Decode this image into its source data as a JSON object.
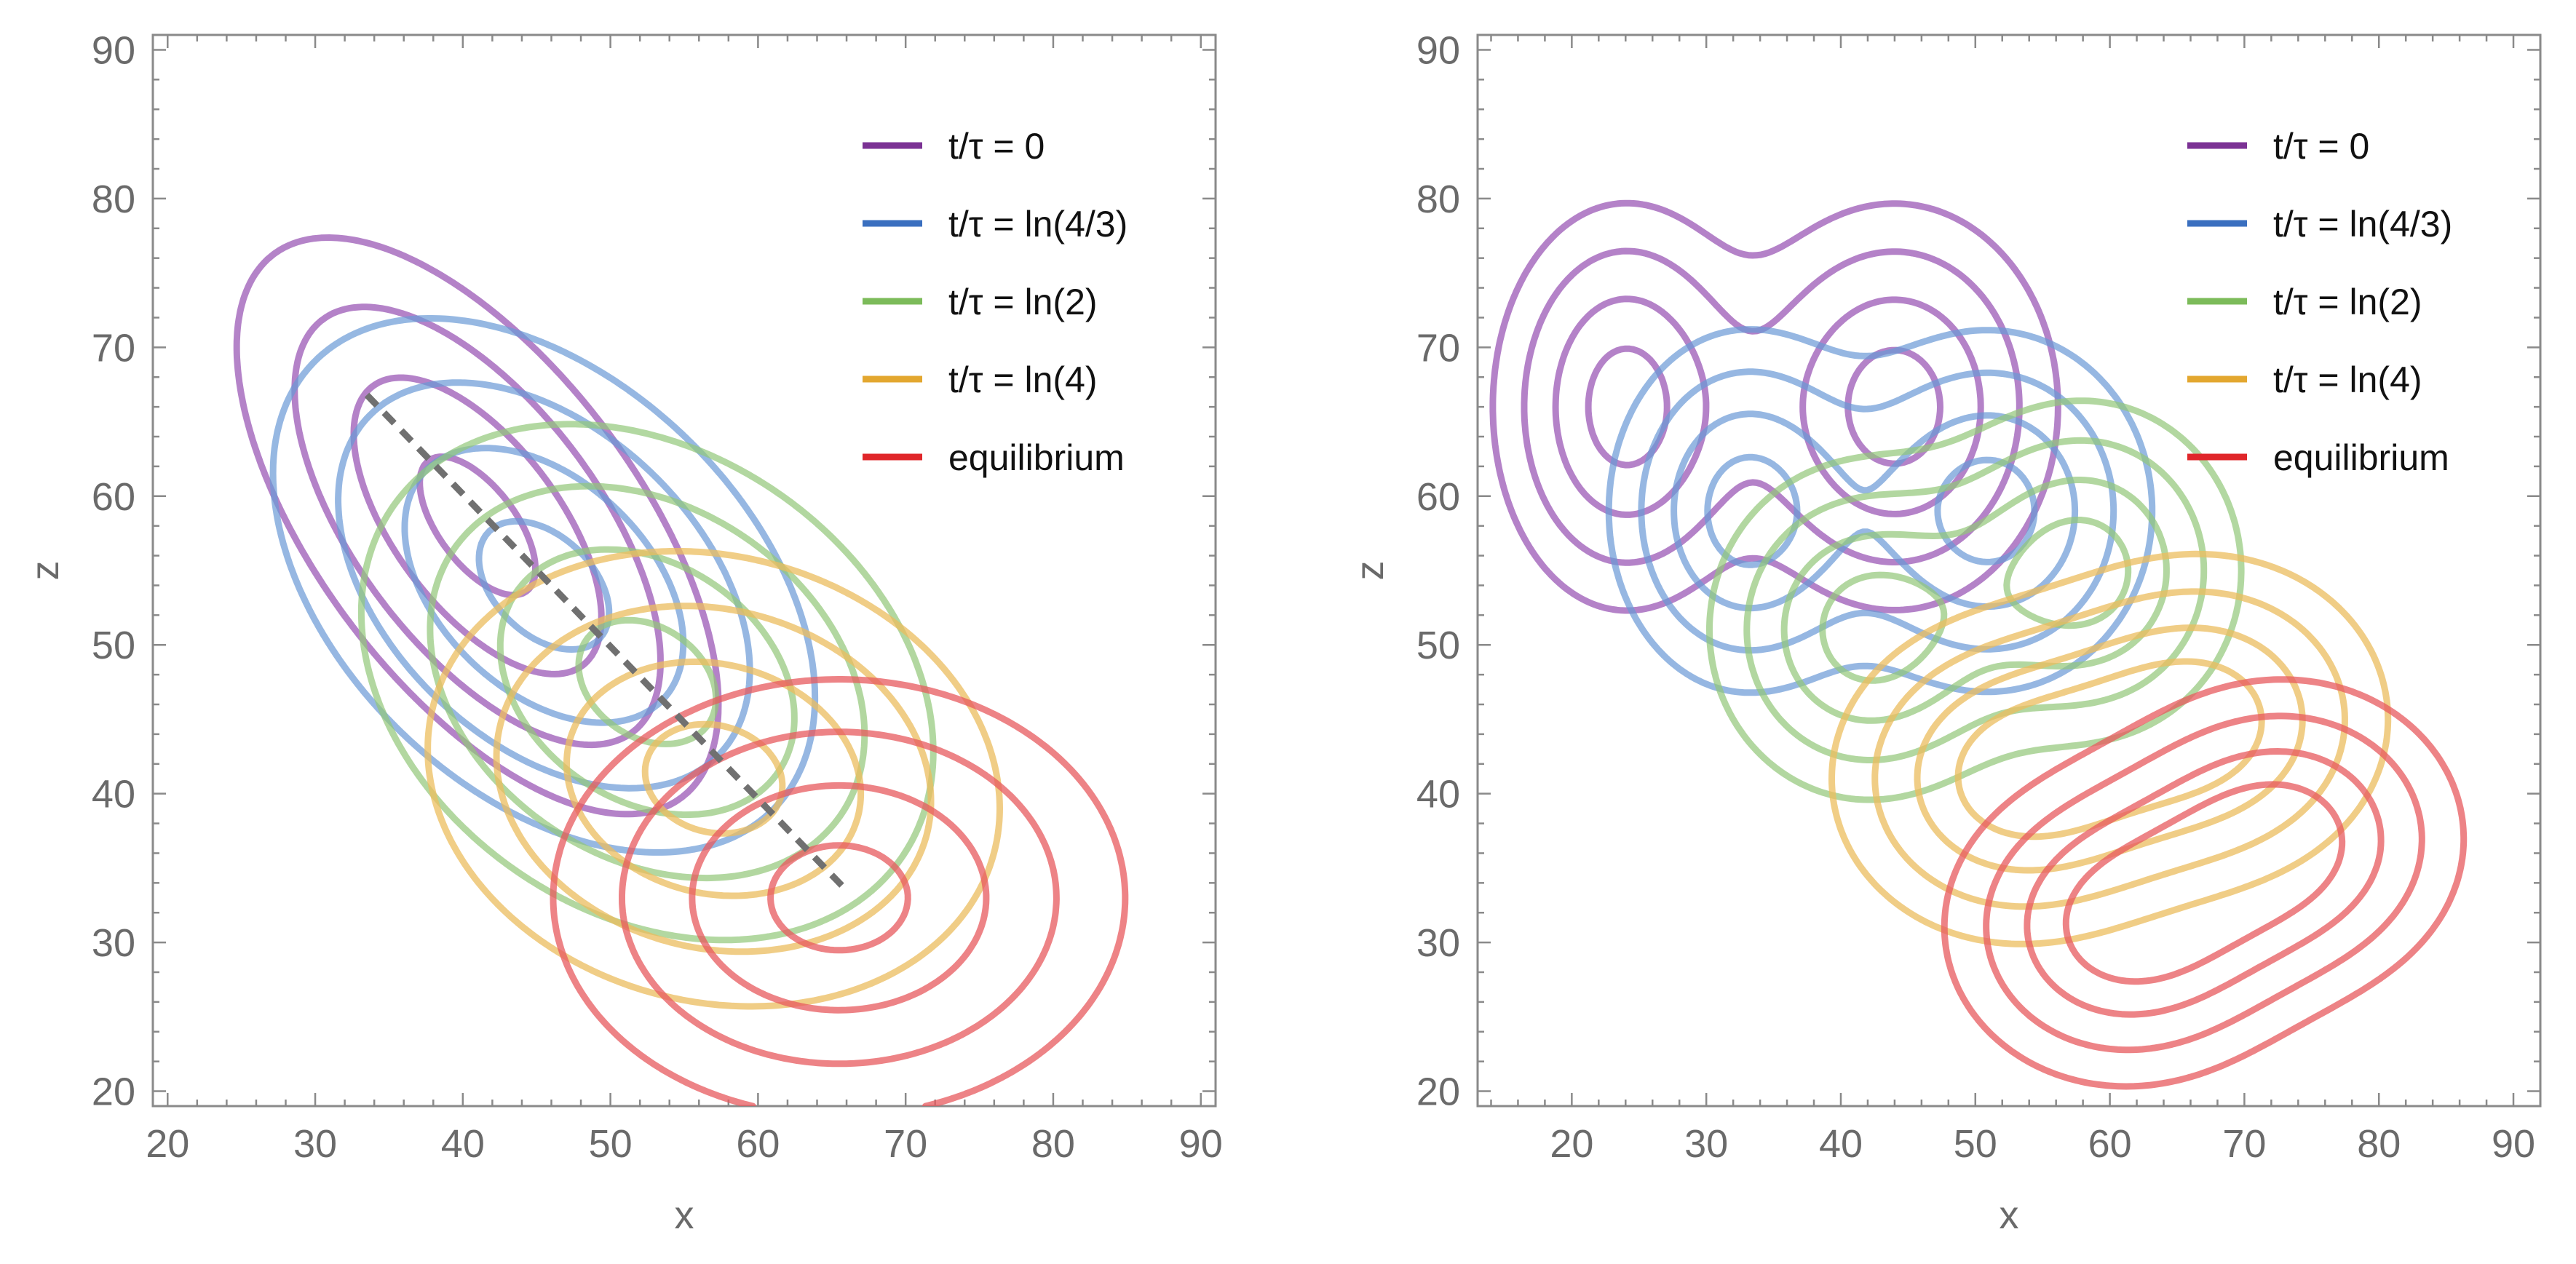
{
  "chart_data": [
    {
      "type": "contour",
      "panel": "left",
      "title": "",
      "xlabel": "x",
      "ylabel": "z",
      "xlim": [
        19,
        91
      ],
      "ylim": [
        19,
        91
      ],
      "xticks": [
        20,
        30,
        40,
        50,
        60,
        70,
        80,
        90
      ],
      "yticks": [
        20,
        30,
        40,
        50,
        60,
        70,
        80,
        90
      ],
      "legend_position": "top-right",
      "legend": [
        {
          "label": "t/τ = 0",
          "color": "#7b3294"
        },
        {
          "label": "t/τ = ln(4/3)",
          "color": "#3a6fbf"
        },
        {
          "label": "t/τ = ln(2)",
          "color": "#7cbb5a"
        },
        {
          "label": "t/τ = ln(4)",
          "color": "#e3a72f"
        },
        {
          "label": "equilibrium",
          "color": "#e0262a"
        }
      ],
      "series": [
        {
          "name": "t/τ = 0",
          "color": "#9b59b6",
          "opacity": 0.75,
          "blobs": [
            {
              "cx": 41,
              "cz": 58,
              "sx": 8,
              "sz": 9.5,
              "rho": -0.62,
              "weight": 1
            }
          ],
          "levels": [
            2.08,
            1.2,
            0.55,
            0.12
          ]
        },
        {
          "name": "t/τ = ln(4/3)",
          "color": "#6a9ad6",
          "opacity": 0.7,
          "blobs": [
            {
              "cx": 45.5,
              "cz": 54,
              "sx": 9,
              "sz": 8.8,
              "rho": -0.42,
              "weight": 1
            }
          ],
          "levels": [
            2.08,
            1.2,
            0.55,
            0.12
          ]
        },
        {
          "name": "t/τ = ln(2)",
          "color": "#92c779",
          "opacity": 0.7,
          "blobs": [
            {
              "cx": 52.5,
              "cz": 47.5,
              "sx": 9.5,
              "sz": 8.5,
              "rho": -0.27,
              "weight": 1
            }
          ],
          "levels": [
            2.08,
            1.2,
            0.55,
            0.12
          ]
        },
        {
          "name": "t/τ = ln(4)",
          "color": "#ecbd5e",
          "opacity": 0.75,
          "blobs": [
            {
              "cx": 57,
              "cz": 41,
              "sx": 9.5,
              "sz": 7.5,
              "rho": -0.13,
              "weight": 1
            }
          ],
          "levels": [
            2.08,
            1.2,
            0.55,
            0.12
          ]
        },
        {
          "name": "equilibrium",
          "color": "#e85a5e",
          "opacity": 0.75,
          "blobs": [
            {
              "cx": 65.5,
              "cz": 33,
              "sx": 9.5,
              "sz": 7.2,
              "rho": 0,
              "weight": 1
            }
          ],
          "levels": [
            2.08,
            1.2,
            0.55,
            0.12
          ]
        }
      ],
      "dashed_line": {
        "points": [
          [
            33.5,
            66.8
          ],
          [
            66,
            33.5
          ]
        ],
        "color": "#707070"
      }
    },
    {
      "type": "contour",
      "panel": "right",
      "title": "",
      "xlabel": "x",
      "ylabel": "z",
      "xlim": [
        13,
        92
      ],
      "ylim": [
        19,
        91
      ],
      "xticks": [
        20,
        30,
        40,
        50,
        60,
        70,
        80,
        90
      ],
      "yticks": [
        20,
        30,
        40,
        50,
        60,
        70,
        80,
        90
      ],
      "legend_position": "top-right",
      "legend": [
        {
          "label": "t/τ = 0",
          "color": "#7b3294"
        },
        {
          "label": "t/τ = ln(4/3)",
          "color": "#3a6fbf"
        },
        {
          "label": "t/τ = ln(2)",
          "color": "#7cbb5a"
        },
        {
          "label": "t/τ = ln(4)",
          "color": "#e3a72f"
        },
        {
          "label": "equilibrium",
          "color": "#e0262a"
        }
      ],
      "series": [
        {
          "name": "t/τ = 0",
          "color": "#9b59b6",
          "opacity": 0.75,
          "blobs": [
            {
              "cx": 24,
              "cz": 66,
              "sx": 5.2,
              "sz": 7.2,
              "rho": 0,
              "weight": 1
            },
            {
              "cx": 44,
              "cz": 66,
              "sx": 6.4,
              "sz": 7.2,
              "rho": 0,
              "weight": 1
            }
          ],
          "levels": [
            1.8,
            1.05,
            0.5,
            0.14
          ]
        },
        {
          "name": "t/τ = ln(4/3)",
          "color": "#6a9ad6",
          "opacity": 0.7,
          "blobs": [
            {
              "cx": 33,
              "cz": 59,
              "sx": 5.4,
              "sz": 6.4,
              "rho": 0,
              "weight": 1
            },
            {
              "cx": 51,
              "cz": 59,
              "sx": 6.4,
              "sz": 6.4,
              "rho": 0,
              "weight": 1
            }
          ],
          "levels": [
            1.8,
            1.05,
            0.5,
            0.14
          ]
        },
        {
          "name": "t/τ = ln(2)",
          "color": "#92c779",
          "opacity": 0.7,
          "blobs": [
            {
              "cx": 42,
              "cz": 51,
              "sx": 6.2,
              "sz": 6.0,
              "rho": 0,
              "weight": 1
            },
            {
              "cx": 58,
              "cz": 55,
              "sx": 6.2,
              "sz": 6.0,
              "rho": 0,
              "weight": 1
            }
          ],
          "levels": [
            1.8,
            1.05,
            0.5,
            0.14
          ]
        },
        {
          "name": "t/τ = ln(4)",
          "color": "#ecbd5e",
          "opacity": 0.75,
          "blobs": [
            {
              "cx": 53,
              "cz": 41,
              "sx": 7.2,
              "sz": 5.8,
              "rho": 0,
              "weight": 1
            },
            {
              "cx": 67,
              "cz": 45,
              "sx": 7.2,
              "sz": 5.8,
              "rho": 0,
              "weight": 1
            }
          ],
          "levels": [
            1.8,
            1.05,
            0.5,
            0.14
          ]
        },
        {
          "name": "equilibrium",
          "color": "#e85a5e",
          "opacity": 0.75,
          "blobs": [
            {
              "cx": 61,
              "cz": 31,
              "sx": 7.0,
              "sz": 5.6,
              "rho": 0,
              "weight": 1
            },
            {
              "cx": 73,
              "cz": 37,
              "sx": 7.0,
              "sz": 5.6,
              "rho": 0,
              "weight": 1
            }
          ],
          "levels": [
            1.8,
            1.05,
            0.5,
            0.14
          ]
        }
      ]
    }
  ]
}
